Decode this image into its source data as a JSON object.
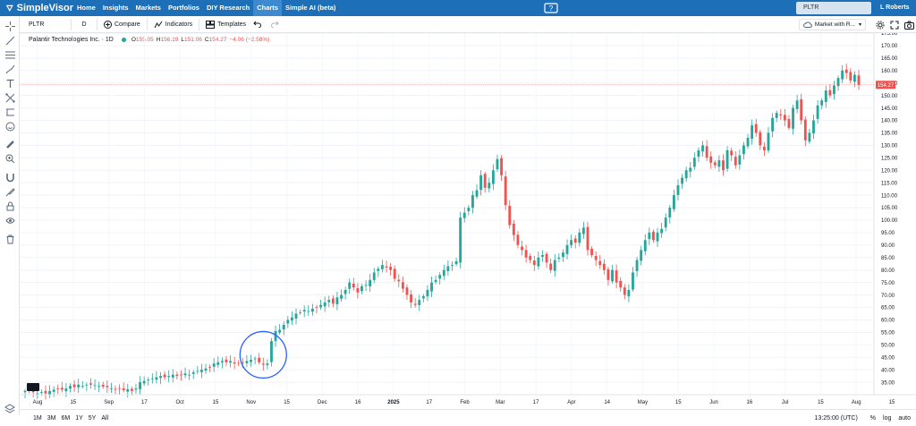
{
  "nav": {
    "brand": "SimpleVisor",
    "items": [
      "Home",
      "Insights",
      "Markets",
      "Portfolios",
      "DIY Research",
      "Charts",
      "Simple AI (beta)"
    ],
    "active": "Charts",
    "search_value": "PLTR",
    "user_name": "L Roberts"
  },
  "toolbar": {
    "symbol": "PLTR",
    "interval": "D",
    "compare_label": "Compare",
    "indicators_label": "Indicators",
    "templates_label": "Templates",
    "layout_label": "Market with R..."
  },
  "legend": {
    "title": "Palantir Technologies Inc. · 1D",
    "open_key": "O",
    "open": "155.05",
    "high_key": "H",
    "high": "156.19",
    "low_key": "L",
    "low": "151.06",
    "close_key": "C",
    "close": "154.27",
    "change": "−4.06 (−2.58%)"
  },
  "bottom": {
    "ranges": [
      "1M",
      "3M",
      "6M",
      "1Y",
      "5Y",
      "All"
    ],
    "time": "13:25:00 (UTC)",
    "percent_label": "%",
    "log_label": "log",
    "auto_label": "auto"
  },
  "colors": {
    "up": "#26a69a",
    "down": "#ef5350",
    "brand": "#1d6fb8",
    "annotation": "#2962ff"
  },
  "chart_data": {
    "type": "candlestick",
    "symbol": "PLTR",
    "interval": "1D",
    "ylim": [
      30,
      175
    ],
    "y_ticks": [
      "35.00",
      "40.00",
      "45.00",
      "50.00",
      "55.00",
      "60.00",
      "65.00",
      "70.00",
      "75.00",
      "80.00",
      "85.00",
      "90.00",
      "95.00",
      "100.00",
      "105.00",
      "110.00",
      "115.00",
      "120.00",
      "125.00",
      "130.00",
      "135.00",
      "140.00",
      "145.00",
      "150.00",
      "155.00",
      "160.00",
      "165.00",
      "170.00",
      "175.00"
    ],
    "x_ticks": [
      "Aug",
      "15",
      "Sep",
      "17",
      "Oct",
      "15",
      "Nov",
      "15",
      "Dec",
      "16",
      "2025",
      "17",
      "Feb",
      "Mar",
      "17",
      "Apr",
      "14",
      "May",
      "15",
      "Jun",
      "16",
      "Jul",
      "15",
      "Aug",
      "15"
    ],
    "last_price_label": "154.27",
    "last_price": 154.27,
    "grid": true,
    "annotation": "circle around early-November gap up (~42 to ~50)",
    "closes": [
      31.5,
      32,
      31,
      30.5,
      31,
      30.5,
      31.5,
      32,
      32.5,
      32,
      32.5,
      33.5,
      33,
      34,
      33.5,
      34,
      34,
      33.8,
      33.5,
      33.2,
      33,
      32.5,
      32,
      32.5,
      31.8,
      32.2,
      31.5,
      32.5,
      35,
      35.5,
      36,
      36.5,
      37,
      37.5,
      37,
      37.5,
      38,
      37.5,
      38,
      38.5,
      38,
      39,
      39.5,
      40,
      40.5,
      41,
      42.5,
      43,
      43.5,
      43,
      43.5,
      42.5,
      42.5,
      43,
      43.5,
      44,
      44.5,
      43,
      42,
      42.5,
      51.5,
      55.5,
      56,
      58,
      60,
      61,
      62.5,
      63,
      64,
      63.5,
      64.5,
      65,
      66,
      67,
      68,
      66.5,
      69,
      70,
      72,
      75,
      73,
      71,
      73.5,
      74,
      76,
      79,
      80.5,
      82,
      81,
      80,
      76.5,
      75.5,
      72.5,
      70,
      67,
      66,
      68,
      69.5,
      72,
      75,
      76,
      78,
      80,
      81.5,
      82,
      83.5,
      101,
      103,
      105,
      110,
      112,
      118,
      113,
      115,
      120,
      124.5,
      118,
      106,
      98,
      94,
      90,
      88,
      85,
      84,
      82,
      85,
      86,
      83,
      80,
      84,
      85,
      87,
      90,
      92,
      91,
      95,
      97,
      88,
      86,
      84,
      82,
      80,
      76,
      80,
      75,
      73,
      70,
      72,
      79,
      84,
      88,
      92,
      95,
      92,
      95,
      96.5,
      101,
      105,
      110,
      114,
      117,
      120,
      121,
      125,
      128,
      130,
      125,
      123,
      122,
      124,
      120,
      128,
      126,
      122,
      126,
      130,
      133,
      138,
      135,
      130,
      128,
      135,
      141,
      143,
      142,
      140,
      137,
      145,
      148,
      140,
      132,
      135,
      140,
      146,
      148,
      152,
      150,
      154,
      157,
      160,
      159,
      156,
      158.3,
      154.27
    ]
  }
}
